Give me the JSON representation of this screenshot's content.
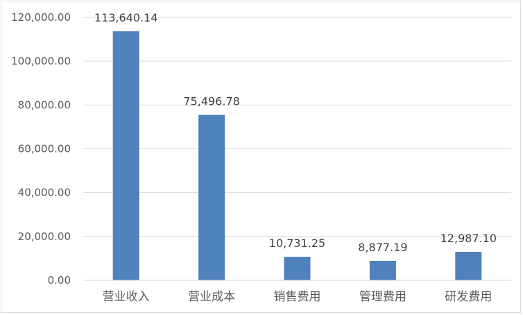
{
  "chart_data": {
    "type": "bar",
    "title": "",
    "xlabel": "",
    "ylabel": "",
    "categories": [
      "营业收入",
      "营业成本",
      "销售费用",
      "管理费用",
      "研发费用"
    ],
    "values": [
      113640.14,
      75496.78,
      10731.25,
      8877.19,
      12987.1
    ],
    "value_labels": [
      "113,640.14",
      "75,496.78",
      "10,731.25",
      "8,877.19",
      "12,987.10"
    ],
    "ylim": [
      0,
      120000
    ],
    "yticks": [
      0,
      20000,
      40000,
      60000,
      80000,
      100000,
      120000
    ],
    "ytick_labels": [
      "0.00",
      "20,000.00",
      "40,000.00",
      "60,000.00",
      "80,000.00",
      "100,000.00",
      "120,000.00"
    ],
    "grid": true,
    "legend": "none",
    "colors": {
      "bar": "#4f81bd",
      "grid": "#d9d9d9",
      "text": "#595959"
    }
  }
}
